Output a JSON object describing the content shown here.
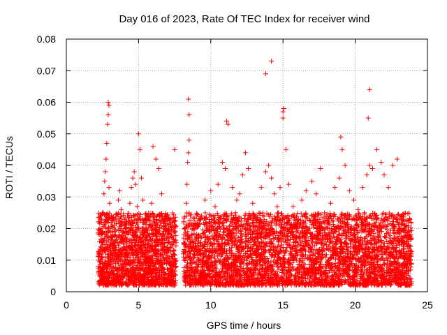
{
  "chart_data": {
    "type": "scatter",
    "title": "Day 016 of 2023, Rate Of TEC Index for receiver wind",
    "xlabel": "GPS time / hours",
    "ylabel": "ROTI / TECUs",
    "xlim": [
      0,
      25
    ],
    "ylim": [
      0,
      0.08
    ],
    "xticks": [
      0,
      5,
      10,
      15,
      20,
      25
    ],
    "yticks": [
      0,
      0.01,
      0.02,
      0.03,
      0.04,
      0.05,
      0.06,
      0.07,
      0.08
    ],
    "xtick_labels": [
      "0",
      "5",
      "10",
      "15",
      "20",
      "25"
    ],
    "ytick_labels": [
      "0",
      "0.01",
      "0.02",
      "0.03",
      "0.04",
      "0.05",
      "0.06",
      "0.07",
      "0.08"
    ],
    "grid": true,
    "marker": "+",
    "color": "#ff0000",
    "series": [
      {
        "name": "ROTI",
        "x": [
          2.2,
          2.3,
          2.4,
          2.5,
          2.6,
          2.65,
          2.7,
          2.75,
          2.8,
          2.85,
          2.9,
          2.95,
          3.0,
          3.1,
          3.2,
          3.3,
          3.4,
          3.5,
          3.6,
          3.7,
          3.8,
          3.9,
          4.0,
          4.1,
          4.2,
          4.3,
          4.4,
          4.5,
          4.6,
          4.7,
          4.8,
          4.9,
          5.0,
          5.1,
          5.2,
          5.3,
          5.4,
          5.5,
          5.6,
          5.7,
          5.8,
          5.9,
          6.0,
          6.2,
          6.4,
          6.6,
          6.8,
          7.0,
          7.2,
          7.4,
          7.5,
          7.6,
          8.1,
          8.2,
          8.3,
          8.35,
          8.4,
          8.45,
          8.5,
          8.6,
          8.7,
          9.0,
          9.3,
          9.6,
          10.0,
          10.3,
          10.5,
          10.8,
          11.0,
          11.2,
          11.5,
          11.8,
          12.0,
          12.2,
          12.4,
          12.6,
          12.9,
          13.2,
          13.5,
          13.8,
          14.0,
          14.2,
          14.4,
          14.6,
          14.8,
          15.0,
          15.2,
          15.4,
          15.7,
          16.0,
          16.3,
          16.6,
          17.0,
          17.3,
          17.6,
          18.0,
          18.3,
          18.6,
          18.9,
          19.1,
          19.3,
          19.6,
          19.9,
          20.2,
          20.5,
          20.8,
          21.0,
          21.2,
          21.5,
          21.8,
          22.0,
          22.3,
          22.6,
          22.9,
          23.2,
          23.5,
          23.7,
          23.9,
          2.9,
          2.95,
          14.2,
          13.8,
          15.0,
          21.0,
          20.9,
          8.45,
          8.5,
          11.1,
          15.05,
          19.0
        ],
        "y": [
          0.008,
          0.012,
          0.018,
          0.025,
          0.031,
          0.035,
          0.038,
          0.042,
          0.047,
          0.053,
          0.056,
          0.033,
          0.028,
          0.022,
          0.015,
          0.012,
          0.018,
          0.024,
          0.029,
          0.032,
          0.026,
          0.019,
          0.014,
          0.011,
          0.016,
          0.022,
          0.028,
          0.033,
          0.036,
          0.038,
          0.034,
          0.027,
          0.05,
          0.045,
          0.036,
          0.029,
          0.022,
          0.017,
          0.013,
          0.01,
          0.021,
          0.028,
          0.046,
          0.042,
          0.039,
          0.031,
          0.024,
          0.018,
          0.014,
          0.012,
          0.045,
          0.008,
          0.012,
          0.02,
          0.028,
          0.034,
          0.041,
          0.044,
          0.048,
          0.021,
          0.014,
          0.017,
          0.023,
          0.029,
          0.032,
          0.027,
          0.034,
          0.041,
          0.039,
          0.053,
          0.033,
          0.029,
          0.031,
          0.037,
          0.044,
          0.039,
          0.028,
          0.024,
          0.033,
          0.038,
          0.04,
          0.036,
          0.031,
          0.027,
          0.033,
          0.055,
          0.045,
          0.034,
          0.027,
          0.022,
          0.029,
          0.032,
          0.035,
          0.031,
          0.039,
          0.024,
          0.028,
          0.033,
          0.036,
          0.045,
          0.04,
          0.032,
          0.029,
          0.026,
          0.033,
          0.037,
          0.04,
          0.039,
          0.045,
          0.041,
          0.037,
          0.033,
          0.04,
          0.042,
          0.024,
          0.021,
          0.018,
          0.017,
          0.06,
          0.059,
          0.073,
          0.069,
          0.057,
          0.064,
          0.055,
          0.061,
          0.056,
          0.054,
          0.058,
          0.049
        ]
      }
    ],
    "dense_band": {
      "description": "Dense ROTI points approximately between 0.002 and 0.025 TECU throughout active periods",
      "intervals": [
        [
          2.2,
          7.6
        ],
        [
          8.1,
          23.9
        ]
      ],
      "ymin": 0.002,
      "ymax": 0.025
    }
  }
}
